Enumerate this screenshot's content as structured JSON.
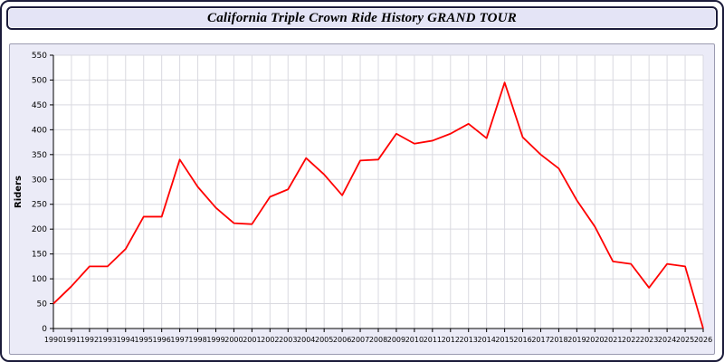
{
  "window": {
    "title": "California Triple Crown Ride History GRAND TOUR"
  },
  "chart_data": {
    "type": "line",
    "title": "California Triple Crown Ride History GRAND TOUR",
    "xlabel": "",
    "ylabel": "Riders",
    "ylim": [
      0,
      550
    ],
    "ytick_step": 50,
    "grid": true,
    "legend": "none",
    "line_color": "#ff0000",
    "plot_bg": "#ffffff",
    "panel_bg": "#ebebf7",
    "categories": [
      1990,
      1991,
      1992,
      1993,
      1994,
      1995,
      1996,
      1997,
      1998,
      1999,
      2000,
      2001,
      2002,
      2003,
      2004,
      2005,
      2006,
      2007,
      2008,
      2009,
      2010,
      2011,
      2012,
      2013,
      2014,
      2015,
      2016,
      2017,
      2018,
      2019,
      2020,
      2021,
      2022,
      2023,
      2024,
      2025,
      2026
    ],
    "series": [
      {
        "name": "Riders",
        "values": [
          50,
          85,
          125,
          125,
          160,
          225,
          225,
          340,
          285,
          243,
          212,
          210,
          265,
          280,
          343,
          310,
          268,
          338,
          340,
          392,
          372,
          378,
          392,
          412,
          383,
          495,
          385,
          350,
          322,
          258,
          205,
          135,
          130,
          82,
          130,
          125,
          0
        ]
      }
    ]
  }
}
